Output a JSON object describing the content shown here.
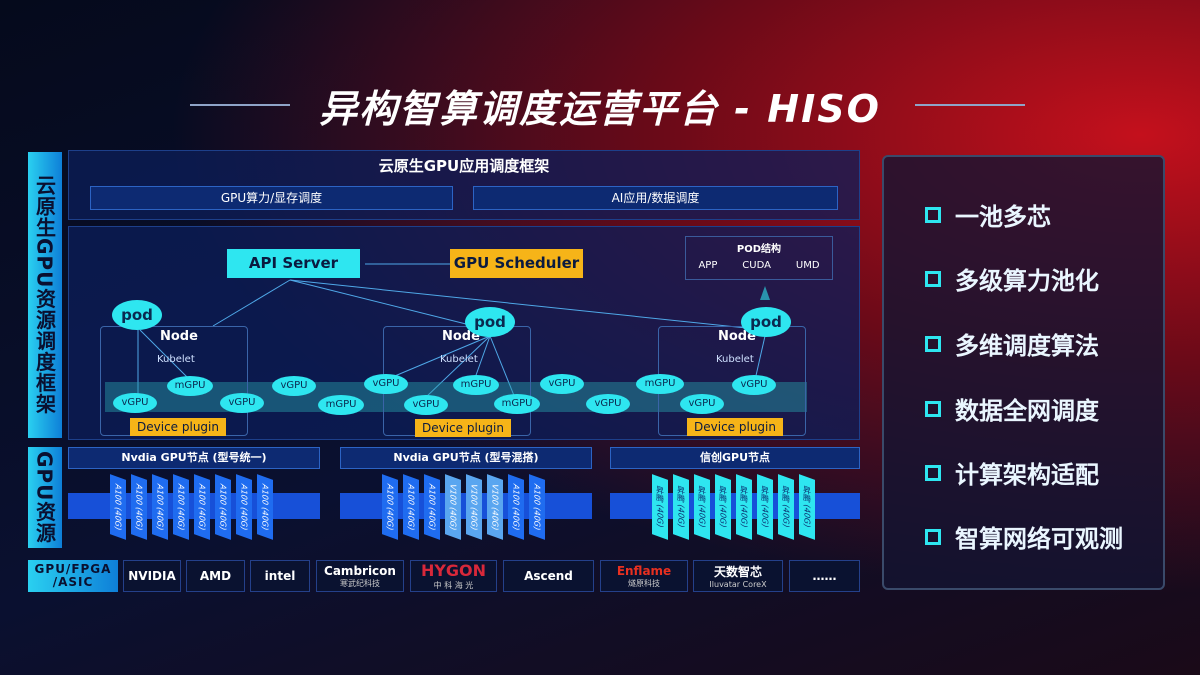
{
  "title": "异构智算调度运营平台 - HISO",
  "left_labels": {
    "scheduling": "云原生GPU资源调度框架",
    "resources": "GPU资源"
  },
  "framework": {
    "header": "云原生GPU应用调度框架",
    "bars": [
      "GPU算力/显存调度",
      "AI应用/数据调度"
    ],
    "api_server": "API Server",
    "gpu_scheduler": "GPU Scheduler",
    "pod_structure": {
      "title": "POD结构",
      "items": [
        "APP",
        "CUDA",
        "UMD"
      ]
    },
    "pod": "pod",
    "node": "Node",
    "kubelet": "Kubelet",
    "device_plugin": "Device plugin",
    "row1": [
      "vGPU",
      "vGPU",
      "vGPU",
      "vGPU",
      "vGPU",
      "vGPU"
    ],
    "vgpu": "vGPU",
    "mgpu": "mGPU"
  },
  "gpu_nodes": [
    {
      "title": "Nvdia GPU节点 (型号统一)",
      "cards": [
        "A100 (40G)",
        "A100 (40G)",
        "A100 (40G)",
        "A100 (40G)",
        "A100 (40G)",
        "A100 (40G)",
        "A100 (40G)",
        "A100 (40G)"
      ]
    },
    {
      "title": "Nvdia GPU节点 (型号混搭)",
      "cards": [
        "A100 (40G)",
        "A100 (40G)",
        "A100 (40G)",
        "V100 (40G)",
        "V100 (40G)",
        "V100 (40G)",
        "A100 (40G)",
        "A100 (40G)"
      ]
    },
    {
      "title": "信创GPU节点",
      "cards": [
        "昇腾 (40G)",
        "昇腾 (40G)",
        "昇腾 (40G)",
        "昇腾 (40G)",
        "昇腾 (40G)",
        "昇腾 (40G)",
        "昇腾 (40G)",
        "昇腾 (40G)"
      ]
    }
  ],
  "vendors": {
    "label": "GPU/FPGA /ASIC",
    "logos": [
      {
        "name": "NVIDIA",
        "sub": ""
      },
      {
        "name": "AMD",
        "sub": ""
      },
      {
        "name": "intel",
        "sub": ""
      },
      {
        "name": "Cambricon",
        "sub": "寒武纪科技"
      },
      {
        "name": "HYGON",
        "sub": "中 科 海 光"
      },
      {
        "name": "Ascend",
        "sub": ""
      },
      {
        "name": "Enflame",
        "sub": "燧原科技"
      },
      {
        "name": "天数智芯",
        "sub": "Iluvatar CoreX"
      },
      {
        "name": "……",
        "sub": ""
      }
    ]
  },
  "features": [
    "一池多芯",
    "多级算力池化",
    "多维调度算法",
    "数据全网调度",
    "计算架构适配",
    "智算网络可观测"
  ],
  "colors": {
    "cyan": "#2ee6f0",
    "yellow": "#f6b418",
    "blue": "#1750d8",
    "red": "#c4101c"
  }
}
